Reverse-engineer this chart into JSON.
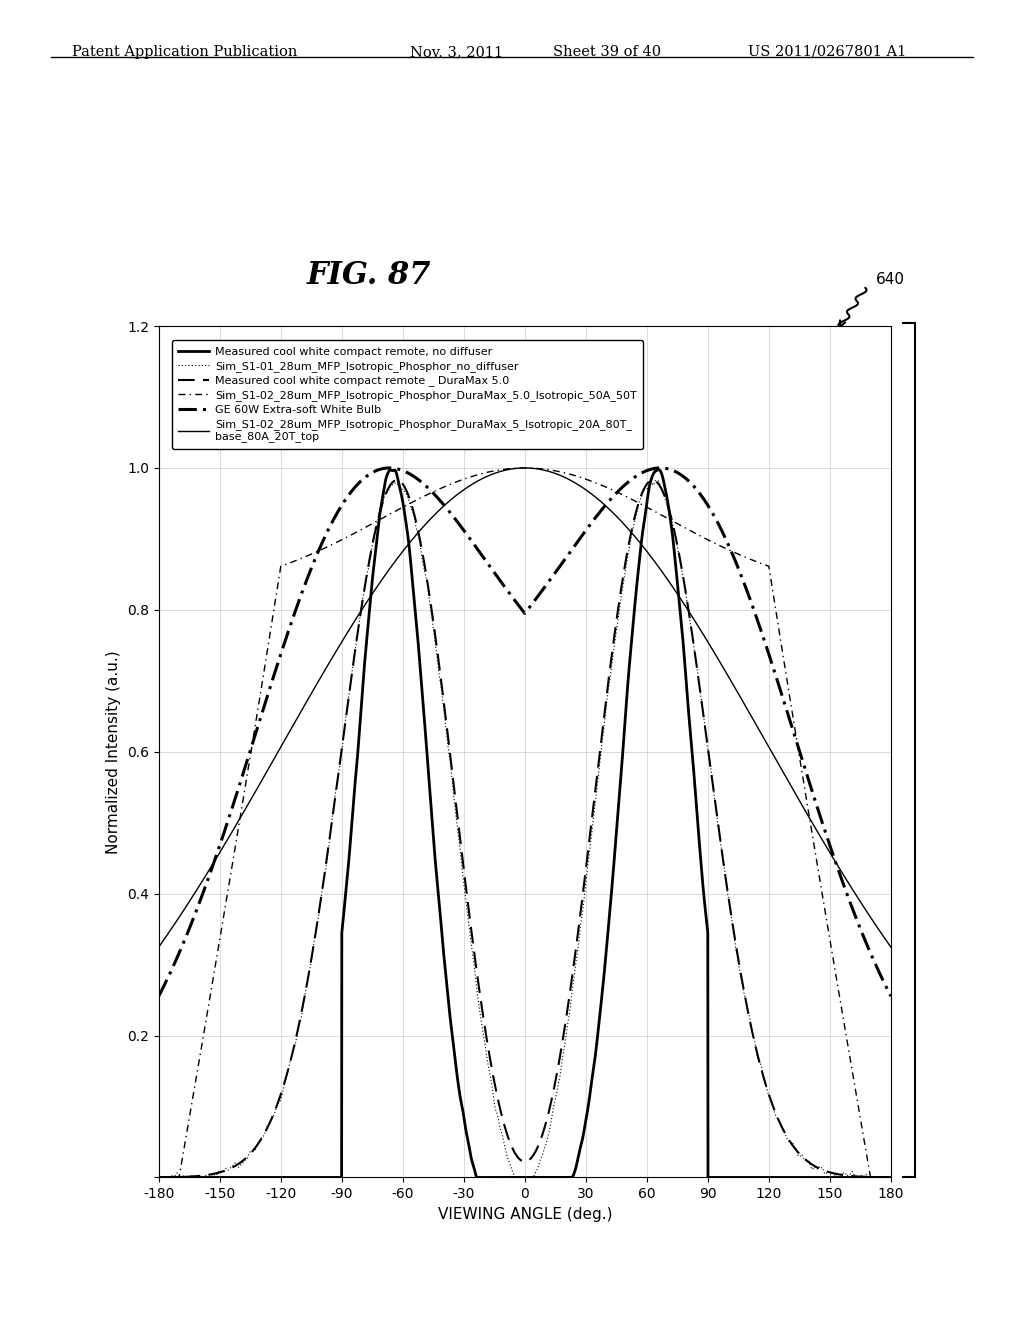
{
  "title": "FIG. 87",
  "xlabel": "VIEWING ANGLE (deg.)",
  "ylabel": "Normalized Intensity (a.u.)",
  "xlim": [
    -180,
    180
  ],
  "ylim": [
    0,
    1.2
  ],
  "xticks": [
    -180,
    -150,
    -120,
    -90,
    -60,
    -30,
    0,
    30,
    60,
    90,
    120,
    150,
    180
  ],
  "yticks": [
    0,
    0.2,
    0.4,
    0.6,
    0.8,
    1.0,
    1.2
  ],
  "legend_entries": [
    "Measured cool white compact remote, no diffuser",
    "Sim_S1-01_28um_MFP_Isotropic_Phosphor_no_diffuser",
    "Measured cool white compact remote _ DuraMax 5.0",
    "Sim_S1-02_28um_MFP_Isotropic_Phosphor_DuraMax_5.0_Isotropic_50A_50T",
    "GE 60W Extra-soft White Bulb",
    "Sim_S1-02_28um_MFP_Isotropic_Phosphor_DuraMax_5_Isotropic_20A_80T_\nbase_80A_20T_top"
  ],
  "fig_label": "640",
  "header_left": "Patent Application Publication",
  "header_mid1": "Nov. 3, 2011",
  "header_mid2": "Sheet 39 of 40",
  "header_right": "US 2011/0267801 A1"
}
